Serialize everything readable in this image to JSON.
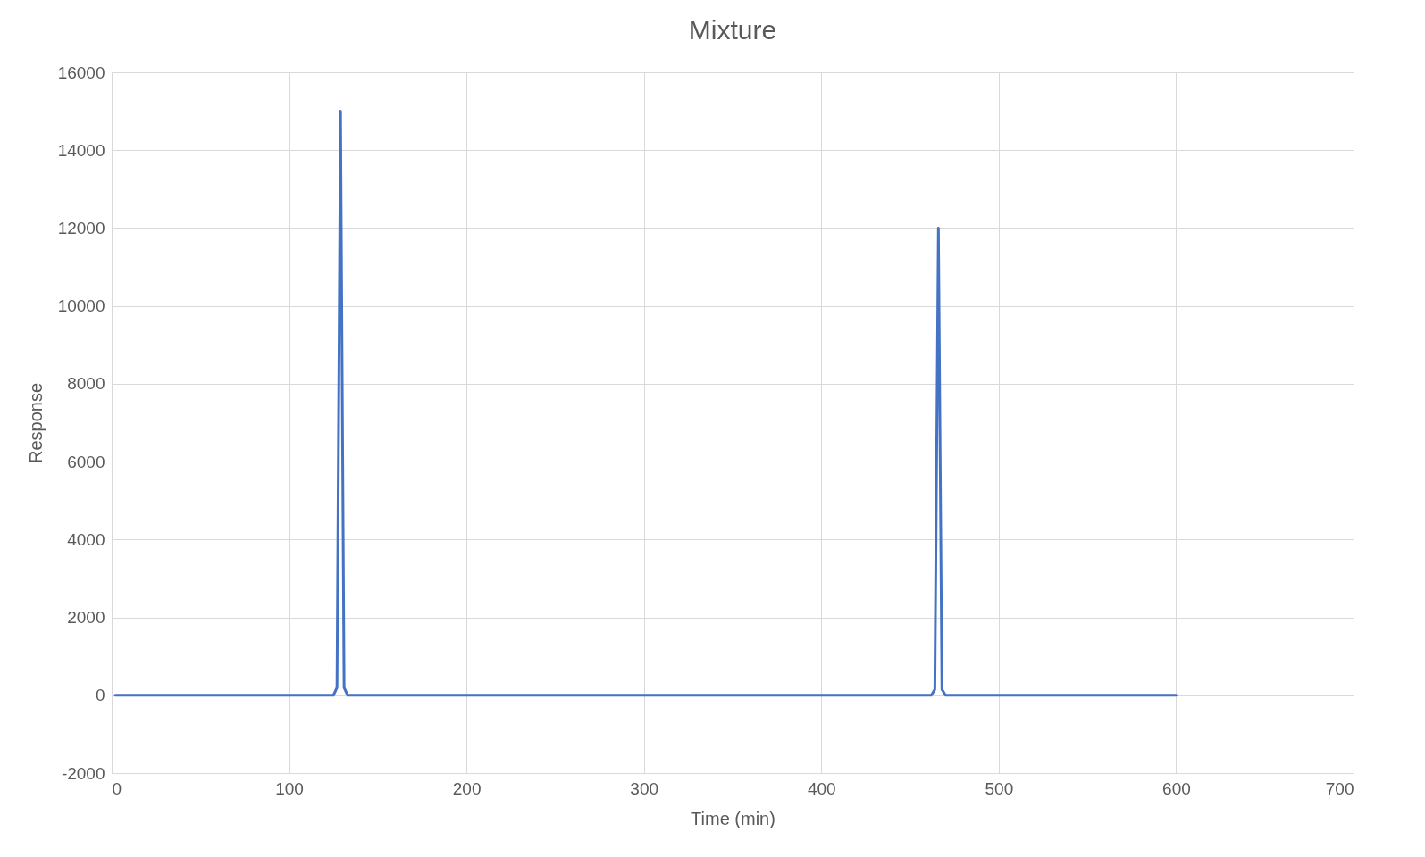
{
  "chart_data": {
    "type": "line",
    "title": "Mixture",
    "xlabel": "Time (min)",
    "ylabel": "Response",
    "series": [
      {
        "color": "#4472c4",
        "x": [
          2,
          125,
          127,
          129,
          131,
          133,
          462,
          464,
          466,
          468,
          470,
          600
        ],
        "values": [
          0,
          0,
          200,
          15000,
          200,
          0,
          0,
          150,
          12000,
          150,
          0,
          0
        ]
      }
    ],
    "xlim": [
      0,
      700
    ],
    "xticks": [
      0,
      100,
      200,
      300,
      400,
      500,
      600,
      700
    ],
    "ylim": [
      -2000,
      16000
    ],
    "yticks": [
      -2000,
      0,
      2000,
      4000,
      6000,
      8000,
      10000,
      12000,
      14000,
      16000
    ],
    "grid": true,
    "marker": "none",
    "line_style": "solid"
  }
}
